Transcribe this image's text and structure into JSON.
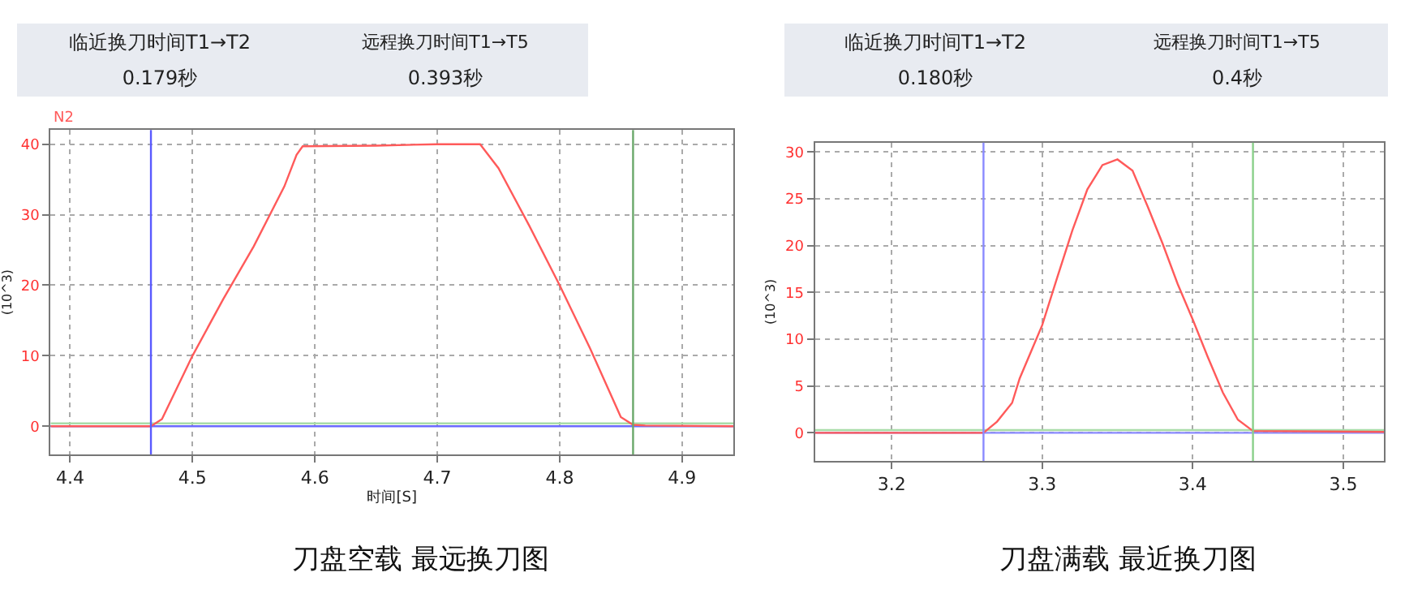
{
  "chart_data": [
    {
      "type": "line",
      "title": "刀盘空载 最远换刀图",
      "xlabel": "时间[S]",
      "ylabel": "(10^3)",
      "annotations": [
        "临近换刀时间T1→T2",
        "远程换刀时间T1→T5",
        "0.179秒",
        "0.393秒"
      ],
      "xlim": [
        4.384,
        4.942
      ],
      "ylim": [
        -4,
        42
      ],
      "xticks": [
        4.4,
        4.5,
        4.6,
        4.7,
        4.8,
        4.9
      ],
      "yticks": [
        0,
        10,
        20,
        30,
        40
      ],
      "grid": true,
      "line_style": "solid",
      "series": [
        {
          "color": "#6a6aff",
          "x": [
            4.384,
            4.942
          ],
          "values": [
            0,
            0
          ]
        },
        {
          "color": "#a8dca8",
          "x": [
            4.384,
            4.942
          ],
          "values": [
            0.4,
            0.4
          ]
        },
        {
          "name": "N2",
          "color": "#ff5a5a",
          "x": [
            4.384,
            4.466,
            4.475,
            4.5,
            4.525,
            4.55,
            4.575,
            4.585,
            4.59,
            4.65,
            4.7,
            4.735,
            4.75,
            4.775,
            4.8,
            4.825,
            4.85,
            4.86,
            4.87,
            4.942
          ],
          "values": [
            0,
            0,
            1,
            10,
            18,
            25.5,
            34,
            38.5,
            39.7,
            39.8,
            40,
            40,
            36.6,
            28.5,
            20,
            11,
            1.3,
            0.2,
            0.1,
            0
          ]
        }
      ],
      "ref_lines": [
        {
          "axis": "x",
          "value": 4.466,
          "color": "#5a5aff"
        },
        {
          "axis": "x",
          "value": 4.86,
          "color": "#6aa86a"
        }
      ]
    },
    {
      "type": "line",
      "title": "刀盘满载 最近换刀图",
      "ylabel": "(10^3)",
      "annotations": [
        "临近换刀时间T1→T2",
        "远程换刀时间T1→T5",
        "0.180秒",
        "0.4秒"
      ],
      "xlim": [
        3.149,
        3.527
      ],
      "ylim": [
        -3,
        31
      ],
      "xticks": [
        3.2,
        3.3,
        3.4,
        3.5
      ],
      "yticks": [
        0,
        5,
        10,
        15,
        20,
        25,
        30
      ],
      "grid": true,
      "line_style": "solid",
      "series": [
        {
          "color": "#8a8aff",
          "x": [
            3.149,
            3.527
          ],
          "values": [
            0,
            0
          ]
        },
        {
          "color": "#a8dca8",
          "x": [
            3.149,
            3.527
          ],
          "values": [
            0.3,
            0.3
          ]
        },
        {
          "color": "#ff5a5a",
          "x": [
            3.149,
            3.261,
            3.27,
            3.28,
            3.285,
            3.3,
            3.31,
            3.32,
            3.33,
            3.34,
            3.35,
            3.36,
            3.37,
            3.38,
            3.39,
            3.4,
            3.41,
            3.42,
            3.43,
            3.44,
            3.527
          ],
          "values": [
            0,
            0,
            1.2,
            3.2,
            5.8,
            11.5,
            16.6,
            21.6,
            26,
            28.6,
            29.2,
            28,
            24.2,
            20.2,
            15.9,
            12.1,
            8.1,
            4.3,
            1.4,
            0.2,
            0.1
          ]
        }
      ],
      "ref_lines": [
        {
          "axis": "x",
          "value": 3.261,
          "color": "#8a8aff"
        },
        {
          "axis": "x",
          "value": 3.44,
          "color": "#8ad08a"
        }
      ]
    }
  ]
}
